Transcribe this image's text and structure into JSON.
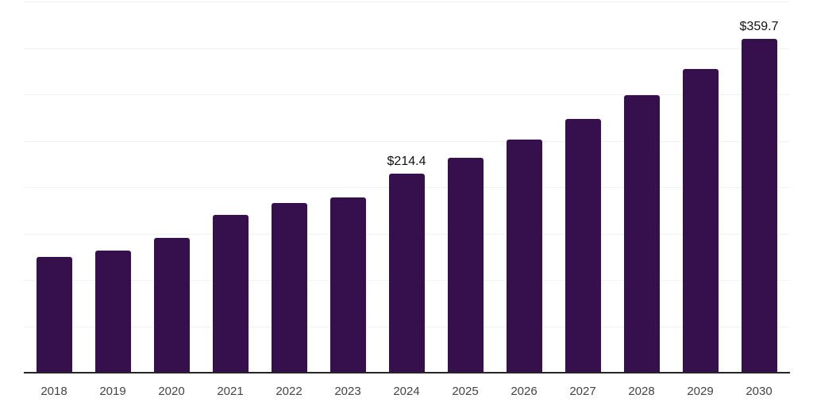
{
  "chart_data": {
    "type": "bar",
    "title": "",
    "xlabel": "",
    "ylabel": "",
    "categories": [
      "2018",
      "2019",
      "2020",
      "2021",
      "2022",
      "2023",
      "2024",
      "2025",
      "2026",
      "2027",
      "2028",
      "2029",
      "2030"
    ],
    "values": [
      125.1,
      131.6,
      145.6,
      170.4,
      182.7,
      189.2,
      214.4,
      231.7,
      251.6,
      273.3,
      298.9,
      327.3,
      359.7
    ],
    "value_labels": [
      "",
      "",
      "",
      "",
      "",
      "",
      "$214.4",
      "",
      "",
      "",
      "",
      "",
      "$359.7"
    ],
    "ylim": [
      0,
      400
    ],
    "gridline_step": 50,
    "grid": true,
    "legend": false,
    "y_tick_labels_shown": false,
    "colors": {
      "bar": "#36104D",
      "gridline": "#F2F2F2",
      "axis_line": "#262626",
      "tick_label": "#444444",
      "value_label": "#111111",
      "background": "#FFFFFF"
    }
  }
}
